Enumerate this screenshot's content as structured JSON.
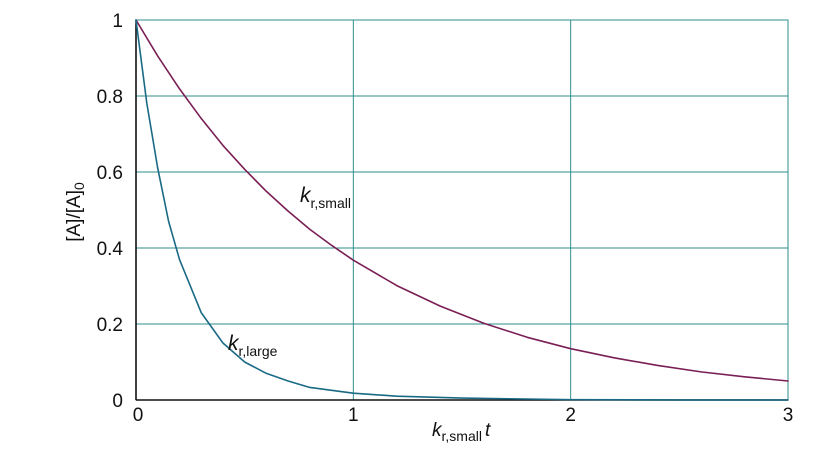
{
  "chart_data": {
    "type": "line",
    "title": "",
    "xlabel": {
      "main": "k",
      "sub": "r,small",
      "suffix": "t"
    },
    "ylabel": {
      "main": "[A]/[A]",
      "sub": "0"
    },
    "xlim": [
      0,
      3
    ],
    "ylim": [
      0,
      1
    ],
    "x_ticks": [
      "0",
      "1",
      "2",
      "3"
    ],
    "y_ticks": [
      "0",
      "0.2",
      "0.4",
      "0.6",
      "0.8",
      "1"
    ],
    "grid": true,
    "series": [
      {
        "name": {
          "main": "k",
          "sub": "r,small"
        },
        "color": "#7a1f55",
        "x": [
          0,
          0.1,
          0.2,
          0.3,
          0.4,
          0.5,
          0.6,
          0.7,
          0.8,
          0.9,
          1.0,
          1.2,
          1.4,
          1.6,
          1.8,
          2.0,
          2.2,
          2.4,
          2.6,
          2.8,
          3.0
        ],
        "y": [
          1.0,
          0.905,
          0.819,
          0.741,
          0.67,
          0.607,
          0.549,
          0.497,
          0.449,
          0.407,
          0.368,
          0.301,
          0.247,
          0.202,
          0.165,
          0.135,
          0.111,
          0.091,
          0.074,
          0.061,
          0.05
        ]
      },
      {
        "name": {
          "main": "k",
          "sub": "r,large"
        },
        "color": "#1a6a85",
        "x": [
          0,
          0.05,
          0.1,
          0.15,
          0.2,
          0.3,
          0.4,
          0.5,
          0.6,
          0.7,
          0.8,
          1.0,
          1.2,
          1.5,
          2.0,
          2.5,
          3.0
        ],
        "y": [
          1.0,
          0.78,
          0.61,
          0.47,
          0.37,
          0.23,
          0.15,
          0.1,
          0.07,
          0.05,
          0.033,
          0.018,
          0.01,
          0.005,
          0.001,
          0.0002,
          0.0
        ]
      }
    ]
  }
}
